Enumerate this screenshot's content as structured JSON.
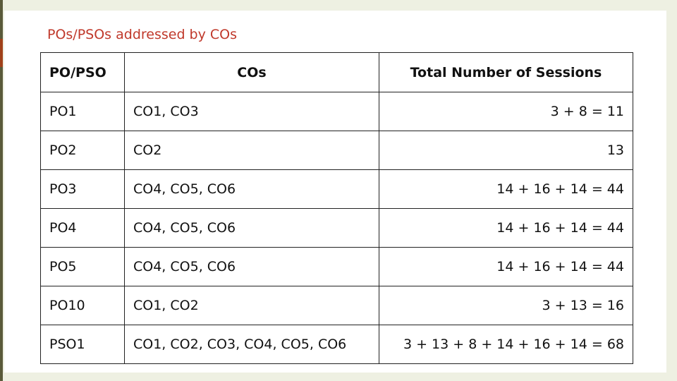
{
  "header": {
    "title": "POs/PSOs addressed by COs"
  },
  "table": {
    "columns": [
      "PO/PSO",
      "COs",
      "Total Number of Sessions"
    ],
    "rows": [
      [
        "PO1",
        "CO1, CO3",
        "3 + 8 = 11"
      ],
      [
        "PO2",
        "CO2",
        "13"
      ],
      [
        "PO3",
        "CO4, CO5, CO6",
        "14 + 16 + 14 = 44"
      ],
      [
        "PO4",
        "CO4, CO5, CO6",
        "14 + 16 + 14 = 44"
      ],
      [
        "PO5",
        "CO4, CO5, CO6",
        "14 + 16 + 14 = 44"
      ],
      [
        "PO10",
        "CO1, CO2",
        "3 + 13 = 16"
      ],
      [
        "PSO1",
        "CO1, CO2, CO3, CO4, CO5, CO6",
        "3 + 13 + 8 + 14 + 16 + 14 = 68"
      ]
    ]
  }
}
